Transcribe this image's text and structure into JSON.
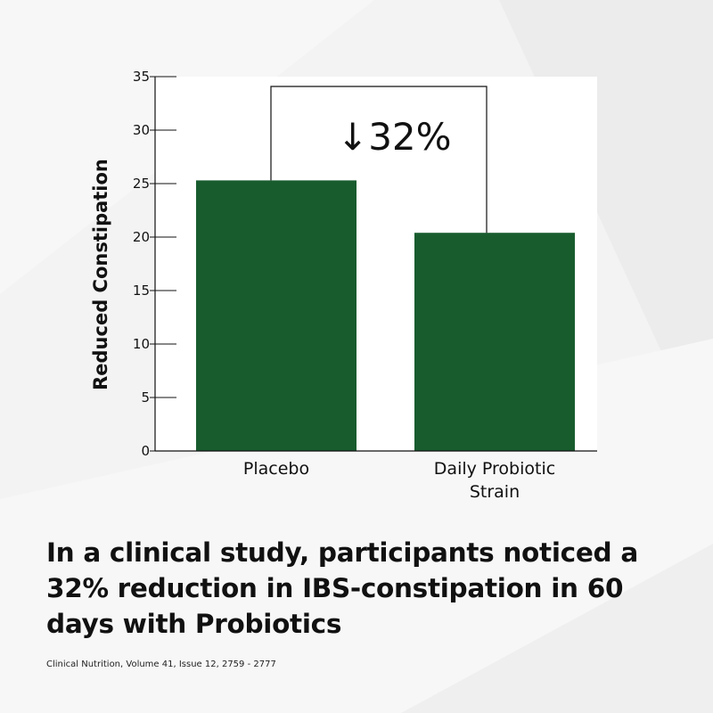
{
  "chart_data": {
    "type": "bar",
    "categories": [
      "Placebo",
      "Daily Probiotic Strain"
    ],
    "category_lines": [
      [
        "Placebo"
      ],
      [
        "Daily Probiotic",
        "Strain"
      ]
    ],
    "values": [
      25.3,
      20.4
    ],
    "ylabel": "Reduced Constipation",
    "ylim": [
      0,
      35
    ],
    "yticks": [
      0,
      5,
      10,
      15,
      20,
      25,
      30,
      35
    ],
    "bar_color": "#185c2e",
    "grid": false,
    "annotation": {
      "arrow": "↓",
      "text": "32%"
    }
  },
  "headline": "In a clinical study, participants noticed a 32% reduction in IBS-constipation in 60 days with Probiotics",
  "citation": "Clinical Nutrition, Volume 41, Issue 12, 2759 - 2777"
}
